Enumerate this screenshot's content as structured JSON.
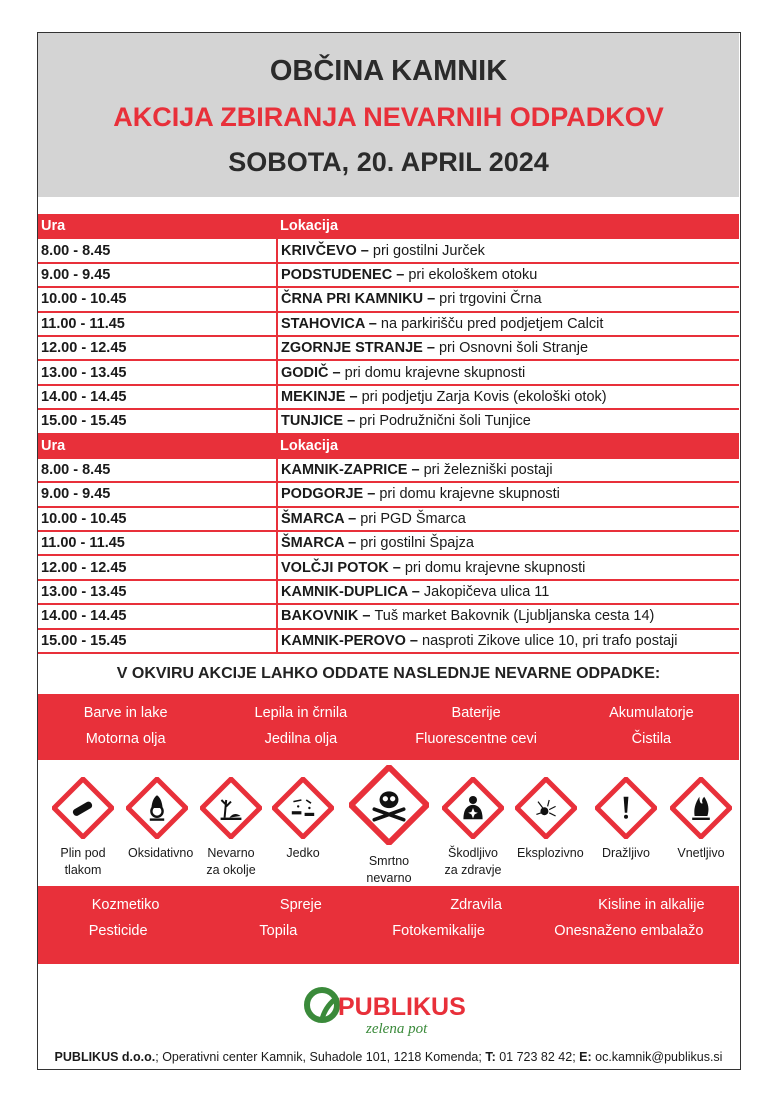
{
  "header": {
    "municipality": "OBČINA KAMNIK",
    "campaign": "AKCIJA ZBIRANJA NEVARNIH ODPADKOV",
    "date": "SOBOTA, 20. APRIL 2024"
  },
  "schedule": {
    "col_time": "Ura",
    "col_location": "Lokacija",
    "group1": [
      {
        "time": "8.00 - 8.45",
        "place": "KRIVČEVO",
        "desc": "pri gostilni Jurček"
      },
      {
        "time": "9.00 - 9.45",
        "place": "PODSTUDENEC",
        "desc": "pri ekološkem otoku"
      },
      {
        "time": "10.00 - 10.45",
        "place": "ČRNA PRI KAMNIKU",
        "desc": "pri trgovini Črna"
      },
      {
        "time": "11.00 - 11.45",
        "place": "STAHOVICA",
        "desc": "na parkirišču pred podjetjem Calcit"
      },
      {
        "time": "12.00 - 12.45",
        "place": "ZGORNJE STRANJE",
        "desc": "pri Osnovni šoli Stranje"
      },
      {
        "time": "13.00 - 13.45",
        "place": "GODIČ",
        "desc": "pri domu krajevne skupnosti"
      },
      {
        "time": "14.00 - 14.45",
        "place": "MEKINJE",
        "desc": "pri podjetju Zarja Kovis (ekološki otok)"
      },
      {
        "time": "15.00 - 15.45",
        "place": "TUNJICE",
        "desc": "pri Podružnični šoli Tunjice"
      }
    ],
    "group2": [
      {
        "time": "8.00 - 8.45",
        "place": "KAMNIK-ZAPRICE",
        "desc": "pri železniški postaji"
      },
      {
        "time": "9.00 - 9.45",
        "place": "PODGORJE",
        "desc": "pri domu krajevne skupnosti"
      },
      {
        "time": "10.00 - 10.45",
        "place": "ŠMARCA",
        "desc": "pri PGD Šmarca"
      },
      {
        "time": "11.00 - 11.45",
        "place": "ŠMARCA",
        "desc": "pri gostilni Špajza"
      },
      {
        "time": "12.00 - 12.45",
        "place": "VOLČJI POTOK",
        "desc": "pri domu krajevne skupnosti"
      },
      {
        "time": "13.00 - 13.45",
        "place": "KAMNIK-DUPLICA",
        "desc": "Jakopičeva ulica 11"
      },
      {
        "time": "14.00 - 14.45",
        "place": "BAKOVNIK",
        "desc": "Tuš market Bakovnik (Ljubljanska cesta 14)"
      },
      {
        "time": "15.00 - 15.45",
        "place": "KAMNIK-PEROVO",
        "desc": "nasproti Zikove ulice 10, pri trafo postaji"
      }
    ]
  },
  "waste_heading": "V OKVIRU AKCIJE LAHKO ODDATE NASLEDNJE NEVARNE ODPADKE:",
  "waste1": [
    [
      "Barve in lake",
      "Lepila in črnila",
      "Baterije",
      "Akumulatorje"
    ],
    [
      "Motorna olja",
      "Jedilna olja",
      "Fluorescentne cevi",
      "Čistila"
    ]
  ],
  "waste2": [
    [
      "Kozmetiko",
      "Spreje",
      "Zdravila",
      "Kisline in alkalije"
    ],
    [
      "Pesticide",
      "Topila",
      "Fotokemikalije",
      "Onesnaženo embalažo"
    ]
  ],
  "hazards": [
    {
      "icon": "gas-cylinder-icon",
      "label": "Plin pod tlakom"
    },
    {
      "icon": "oxidizer-icon",
      "label": "Oksidativno"
    },
    {
      "icon": "environment-icon",
      "label": "Nevarno za okolje"
    },
    {
      "icon": "corrosive-icon",
      "label": "Jedko"
    },
    {
      "icon": "skull-crossbones-icon",
      "label": "Smrtno nevarno"
    },
    {
      "icon": "health-hazard-icon",
      "label": "Škodljivo za zdravje"
    },
    {
      "icon": "explosive-icon",
      "label": "Eksplozivno"
    },
    {
      "icon": "exclamation-icon",
      "label": "Dražljivo"
    },
    {
      "icon": "flame-icon",
      "label": "Vnetljivo"
    }
  ],
  "logo": {
    "name": "PUBLIKUS",
    "tagline": "zelena pot"
  },
  "footer": {
    "company": "PUBLIKUS d.o.o.",
    "address": "; Operativni center Kamnik, Suhadole 101, 1218 Komenda; ",
    "t_label": "T:",
    "phone": " 01 723 82 42; ",
    "e_label": "E:",
    "email": " oc.kamnik@publikus.si"
  },
  "colors": {
    "accent": "#e8303a",
    "header_bg": "#d4d4d4",
    "logo_green": "#3a8a3a"
  }
}
